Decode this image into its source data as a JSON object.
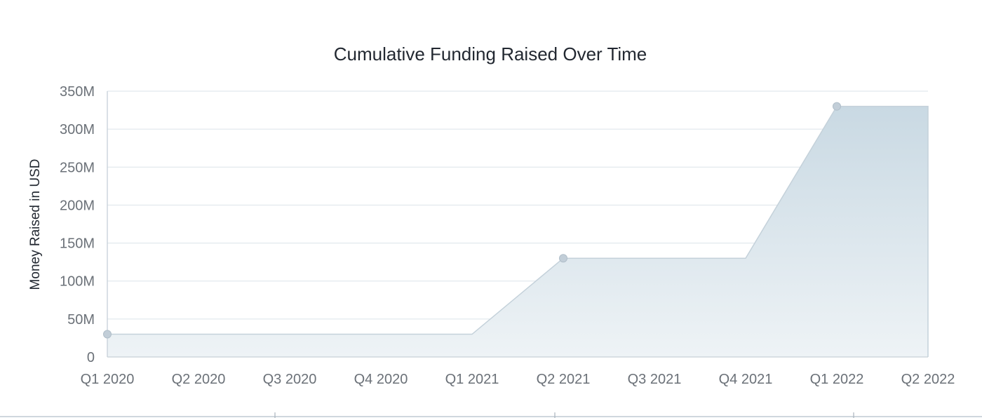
{
  "colors": {
    "area_top": "#c9d9e3",
    "area_bottom": "#eef3f6",
    "line": "#c4d1da",
    "marker": "#c2ced8",
    "grid": "#dbe3e9"
  },
  "chart_data": {
    "type": "area",
    "title": "Cumulative Funding Raised Over Time",
    "xlabel": "",
    "ylabel": "Money Raised in USD",
    "categories": [
      "Q1 2020",
      "Q2 2020",
      "Q3 2020",
      "Q4 2020",
      "Q1 2021",
      "Q2 2021",
      "Q3 2021",
      "Q4 2021",
      "Q1 2022",
      "Q2 2022"
    ],
    "values": [
      30,
      30,
      30,
      30,
      30,
      130,
      130,
      130,
      330,
      330
    ],
    "markers_at": [
      "Q1 2020",
      "Q2 2021",
      "Q1 2022"
    ],
    "y_ticks": [
      "0",
      "50M",
      "100M",
      "150M",
      "200M",
      "250M",
      "300M",
      "350M"
    ],
    "y_tick_values": [
      0,
      50,
      100,
      150,
      200,
      250,
      300,
      350
    ],
    "ylim": [
      0,
      350
    ],
    "y_unit": "million USD",
    "grid": true,
    "legend": "none"
  }
}
